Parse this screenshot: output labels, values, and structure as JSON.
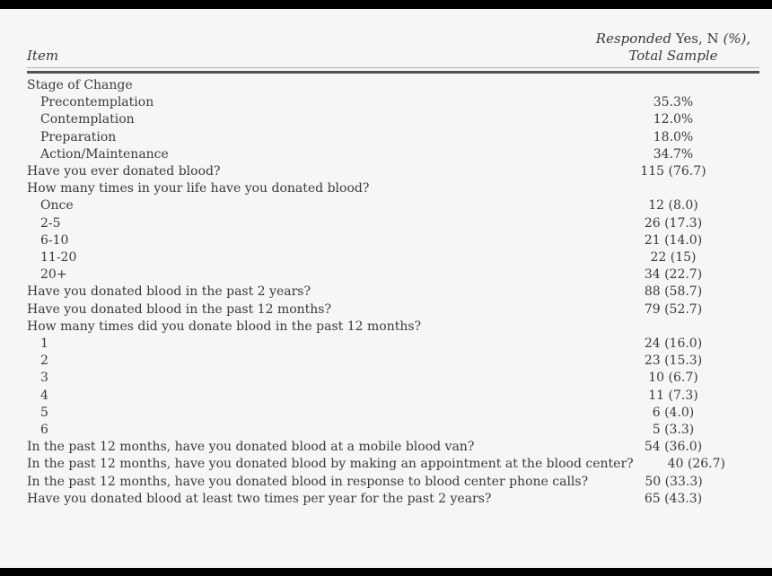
{
  "page": {
    "background": "#f5f6f6",
    "bar_color": "#000000",
    "text_color": "#3a3a3a",
    "rule_thin_color": "#b3b3b3",
    "rule_thick_color": "#525252"
  },
  "header": {
    "item_label": "Item",
    "value_label": {
      "seg_italic_1": "Responded",
      "seg_roman": "Yes, N",
      "seg_italic_2": "(%),",
      "line2": "Total Sample"
    }
  },
  "rows": [
    {
      "label": "Stage of Change",
      "indent": 0,
      "value": ""
    },
    {
      "label": "Precontemplation",
      "indent": 1,
      "value": "35.3%"
    },
    {
      "label": "Contemplation",
      "indent": 1,
      "value": "12.0%"
    },
    {
      "label": "Preparation",
      "indent": 1,
      "value": "18.0%"
    },
    {
      "label": "Action/Maintenance",
      "indent": 1,
      "value": "34.7%"
    },
    {
      "label": "Have you ever donated blood?",
      "indent": 0,
      "value": "115 (76.7)"
    },
    {
      "label": "How many times in your life have you donated blood?",
      "indent": 0,
      "value": ""
    },
    {
      "label": "Once",
      "indent": 1,
      "value": "12 (8.0)"
    },
    {
      "label": "2-5",
      "indent": 1,
      "value": "26 (17.3)"
    },
    {
      "label": "6-10",
      "indent": 1,
      "value": "21 (14.0)"
    },
    {
      "label": "11-20",
      "indent": 1,
      "value": "22 (15)"
    },
    {
      "label": "20+",
      "indent": 1,
      "value": "34 (22.7)"
    },
    {
      "label": "Have you donated blood in the past 2 years?",
      "indent": 0,
      "value": "88 (58.7)"
    },
    {
      "label": "Have you donated blood in the past 12 months?",
      "indent": 0,
      "value": "79 (52.7)"
    },
    {
      "label": "How many times did you donate blood in the past 12 months?",
      "indent": 0,
      "value": ""
    },
    {
      "label": "1",
      "indent": 1,
      "value": "24 (16.0)"
    },
    {
      "label": "2",
      "indent": 1,
      "value": "23 (15.3)"
    },
    {
      "label": "3",
      "indent": 1,
      "value": "10 (6.7)"
    },
    {
      "label": "4",
      "indent": 1,
      "value": "11 (7.3)"
    },
    {
      "label": "5",
      "indent": 1,
      "value": "6 (4.0)"
    },
    {
      "label": "6",
      "indent": 1,
      "value": "5 (3.3)"
    },
    {
      "label": "In the past 12 months, have you donated blood at a mobile blood van?",
      "indent": 0,
      "value": "54 (36.0)"
    },
    {
      "label": "In the past 12 months, have you donated blood by making an appointment at the blood center?",
      "indent": 0,
      "value": "40 (26.7)"
    },
    {
      "label": "In the past 12 months, have you donated blood in response to blood center phone calls?",
      "indent": 0,
      "value": "50 (33.3)"
    },
    {
      "label": "Have you donated blood at least two times per year for the past 2 years?",
      "indent": 0,
      "value": "65 (43.3)"
    }
  ]
}
